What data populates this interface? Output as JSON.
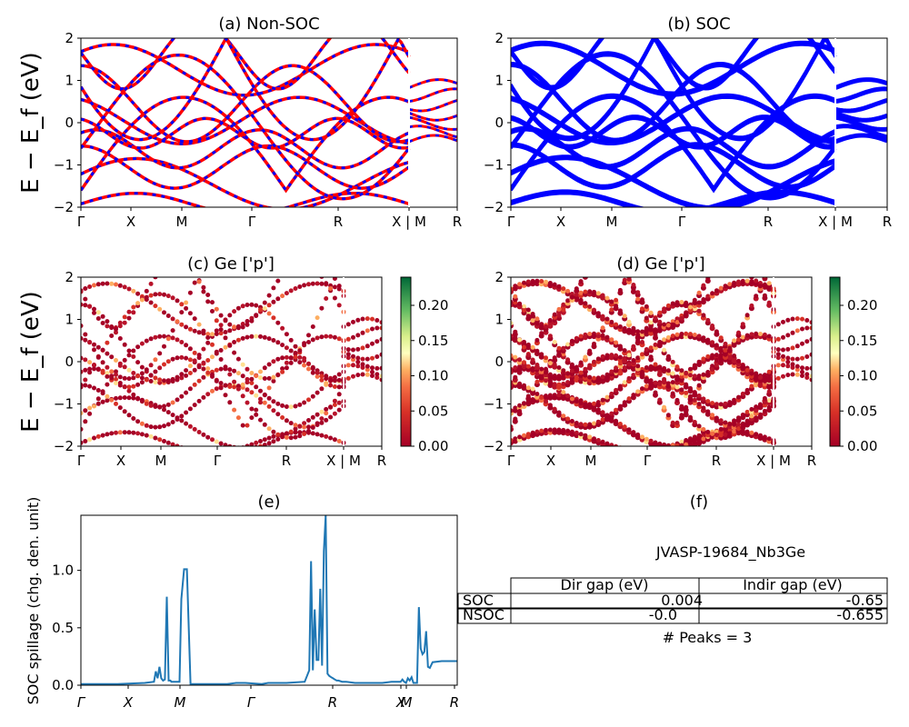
{
  "panels": {
    "a": {
      "title": "(a) Non-SOC"
    },
    "b": {
      "title": "(b) SOC"
    },
    "c": {
      "title": "(c)  Ge ['p']"
    },
    "d": {
      "title": "(d) Ge ['p']"
    },
    "e": {
      "title": "(e)"
    },
    "f": {
      "title": "(f)"
    }
  },
  "axes": {
    "band_ylabel": "E − E_f (eV)",
    "band_yticks": [
      "2",
      "1",
      "0",
      "−1",
      "−2"
    ],
    "kpath_labels": [
      "Γ",
      "X",
      "M",
      "Γ",
      "R",
      "X | M",
      "R"
    ],
    "spillage_ylabel": "SOC spillage (chg. den. unit)",
    "spillage_yticks": [
      "0.0",
      "0.5",
      "1.0"
    ],
    "spillage_xticks": [
      "Γ",
      "X",
      "M",
      "Γ",
      "R",
      "X",
      "M",
      "R"
    ],
    "colorbar_ticks": [
      "0.20",
      "0.15",
      "0.10",
      "0.05",
      "0.00"
    ]
  },
  "colors": {
    "nsoc": "#ff0000",
    "soc": "#0000ff",
    "spillage": "#1f77b4"
  },
  "info": {
    "jid": "JVASP-19684_Nb3Ge",
    "table": {
      "headers": [
        "",
        "Dir gap (eV)",
        "Indir gap (eV)"
      ],
      "rows": [
        [
          "SOC",
          "0.004",
          "-0.65"
        ],
        [
          "NSOC",
          "-0.0",
          "-0.655"
        ]
      ]
    },
    "peaks": "# Peaks = 3"
  },
  "chart_data": [
    {
      "type": "line",
      "title": "(a) Non-SOC",
      "ylabel": "E − E_f (eV)",
      "ylim": [
        -2,
        2
      ],
      "xticklabels": [
        "Γ",
        "X",
        "M",
        "Γ",
        "R",
        "X | M",
        "R"
      ],
      "series": [
        {
          "name": "",
          "color": "#ff0000"
        },
        {
          "name": "",
          "color": "#0000ff"
        }
      ]
    },
    {
      "type": "line",
      "title": "(b) SOC",
      "ylim": [
        -2,
        2
      ],
      "xticklabels": [
        "Γ",
        "X",
        "M",
        "Γ",
        "R",
        "X | M",
        "R"
      ],
      "series": [
        {
          "name": "",
          "color": "#0000ff"
        }
      ]
    },
    {
      "type": "scatter",
      "title": "(c)  Ge ['p']",
      "ylabel": "E − E_f (eV)",
      "ylim": [
        -2,
        2
      ],
      "colorbar": {
        "range": [
          0.0,
          0.24
        ],
        "ticks": [
          0.0,
          0.05,
          0.1,
          0.15,
          0.2
        ]
      }
    },
    {
      "type": "scatter",
      "title": "(d) Ge ['p']",
      "ylim": [
        -2,
        2
      ],
      "colorbar": {
        "range": [
          0.0,
          0.24
        ],
        "ticks": [
          0.0,
          0.05,
          0.1,
          0.15,
          0.2
        ]
      }
    },
    {
      "type": "line",
      "title": "(e)",
      "ylabel": "SOC spillage (chg. den. unit)",
      "ylim": [
        0,
        1.48
      ],
      "xticklabels": [
        "Γ",
        "X",
        "M",
        "Γ",
        "R",
        "X",
        "M",
        "R"
      ],
      "x": [
        0,
        40,
        70,
        80,
        82,
        84,
        86,
        88,
        90,
        92,
        94,
        96,
        98,
        99,
        100,
        108,
        110,
        113,
        116,
        120,
        128,
        130,
        132,
        134,
        136,
        138,
        140,
        145,
        150,
        160,
        170,
        180,
        198,
        205,
        225,
        245,
        250,
        252,
        254,
        256,
        258,
        260,
        262,
        264,
        266,
        268,
        270,
        272,
        274,
        276,
        278,
        280,
        282,
        286,
        290,
        300,
        310,
        320,
        330,
        340,
        345,
        350,
        352,
        354,
        356,
        358,
        360,
        362,
        364,
        366,
        368,
        370,
        372,
        374,
        376,
        378,
        380,
        382,
        385,
        395,
        403,
        410,
        412
      ],
      "values": [
        0.01,
        0.01,
        0.02,
        0.03,
        0.12,
        0.06,
        0.16,
        0.06,
        0.04,
        0.05,
        0.77,
        0.04,
        0.04,
        0.03,
        0.03,
        0.03,
        0.75,
        1.01,
        1.01,
        0.01,
        0.01,
        0.01,
        0.01,
        0.01,
        0.01,
        0.01,
        0.01,
        0.01,
        0.01,
        0.01,
        0.02,
        0.02,
        0.01,
        0.02,
        0.02,
        0.03,
        0.13,
        1.08,
        0.13,
        0.66,
        0.22,
        0.22,
        0.84,
        0.17,
        1.17,
        1.48,
        0.1,
        0.08,
        0.07,
        0.06,
        0.05,
        0.04,
        0.04,
        0.03,
        0.03,
        0.02,
        0.02,
        0.02,
        0.02,
        0.03,
        0.03,
        0.03,
        0.05,
        0.03,
        0.02,
        0.06,
        0.04,
        0.07,
        0.02,
        0.02,
        0.02,
        0.68,
        0.32,
        0.27,
        0.29,
        0.47,
        0.16,
        0.15,
        0.2,
        0.21,
        0.21,
        0.21,
        0.21
      ]
    }
  ]
}
